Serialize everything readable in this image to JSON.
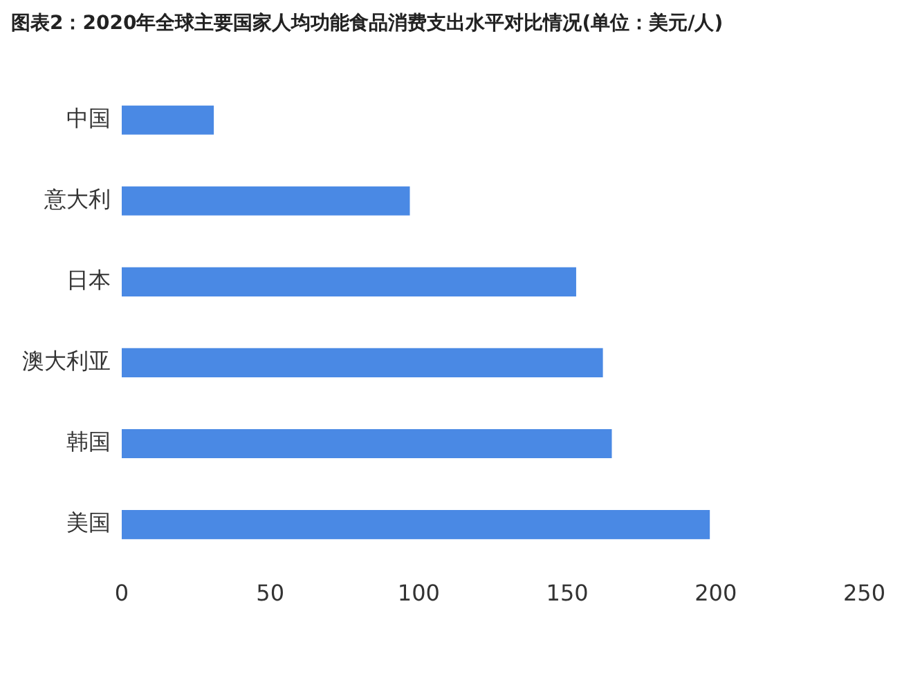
{
  "chart_data": {
    "type": "bar",
    "orientation": "horizontal",
    "title": "图表2：2020年全球主要国家人均功能食品消费支出水平对比情况(单位：美元/人)",
    "categories": [
      "中国",
      "意大利",
      "日本",
      "澳大利亚",
      "韩国",
      "美国"
    ],
    "values": [
      31,
      97,
      153,
      162,
      165,
      198
    ],
    "color": "#4a89e4",
    "xlim": [
      0,
      250
    ],
    "xticks": [
      0,
      50,
      100,
      150,
      200,
      250
    ],
    "grid": false,
    "legend": false
  }
}
